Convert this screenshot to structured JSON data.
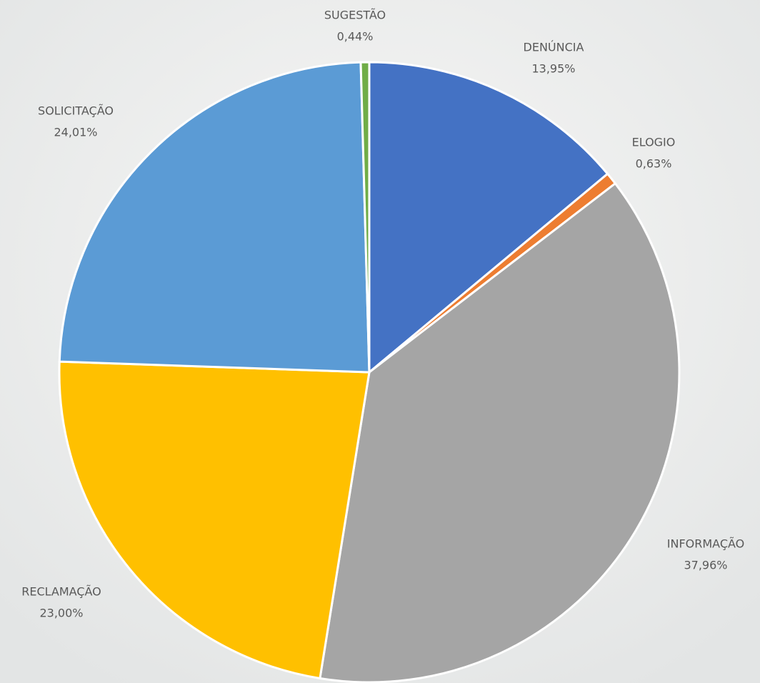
{
  "chart_data": {
    "type": "pie",
    "categories": [
      "DENÚNCIA",
      "ELOGIO",
      "INFORMAÇÃO",
      "RECLAMAÇÃO",
      "SOLICITAÇÃO",
      "SUGESTÃO"
    ],
    "values": [
      13.95,
      0.63,
      37.96,
      23.0,
      24.01,
      0.44
    ],
    "value_labels": [
      "13,95%",
      "0,63%",
      "37,96%",
      "23,00%",
      "24,01%",
      "0,44%"
    ],
    "colors": [
      "#4472c4",
      "#ed7d31",
      "#a5a5a5",
      "#ffc000",
      "#5b9bd5",
      "#70ad47"
    ]
  }
}
